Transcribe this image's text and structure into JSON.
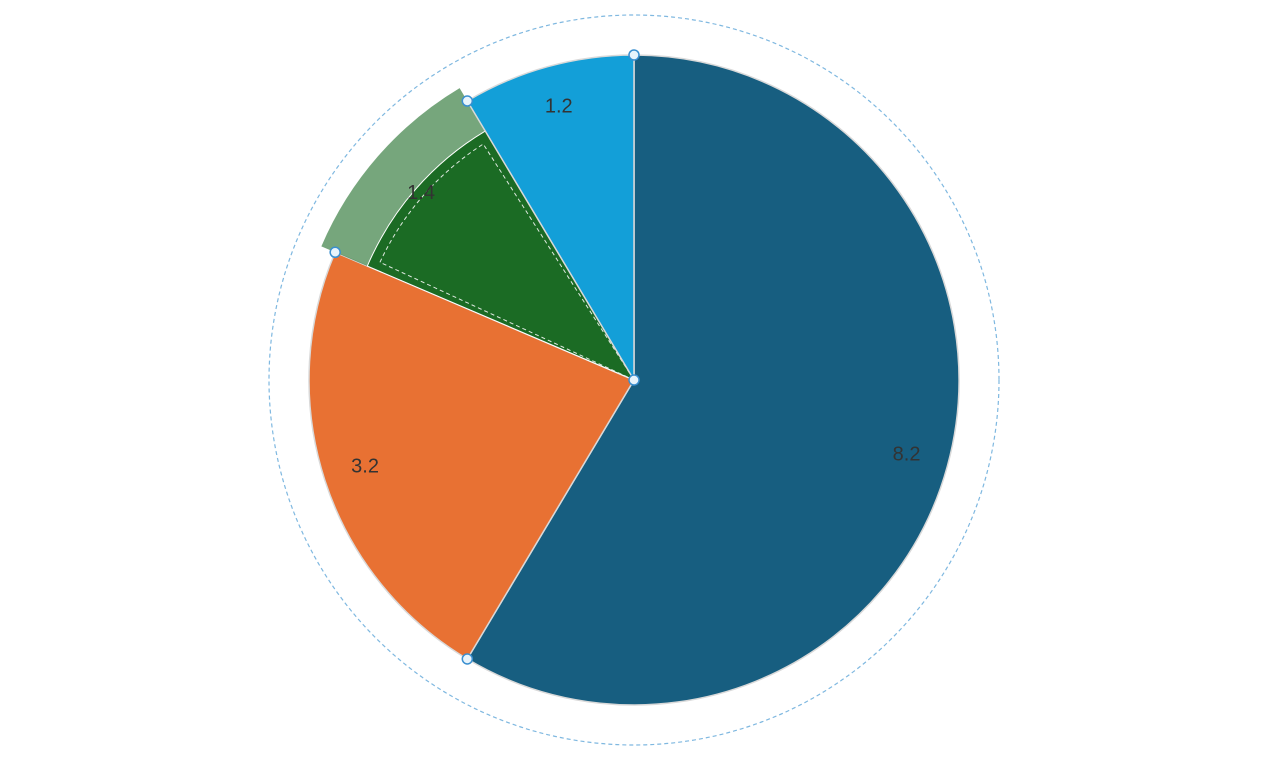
{
  "chart_data": {
    "type": "pie",
    "categories": [
      null,
      null,
      null,
      null
    ],
    "values": [
      8.2,
      3.2,
      1.4,
      1.2
    ],
    "colors": [
      "#175e80",
      "#e87133",
      "#1b6b24",
      "#139fd8"
    ],
    "selected": 2
  }
}
